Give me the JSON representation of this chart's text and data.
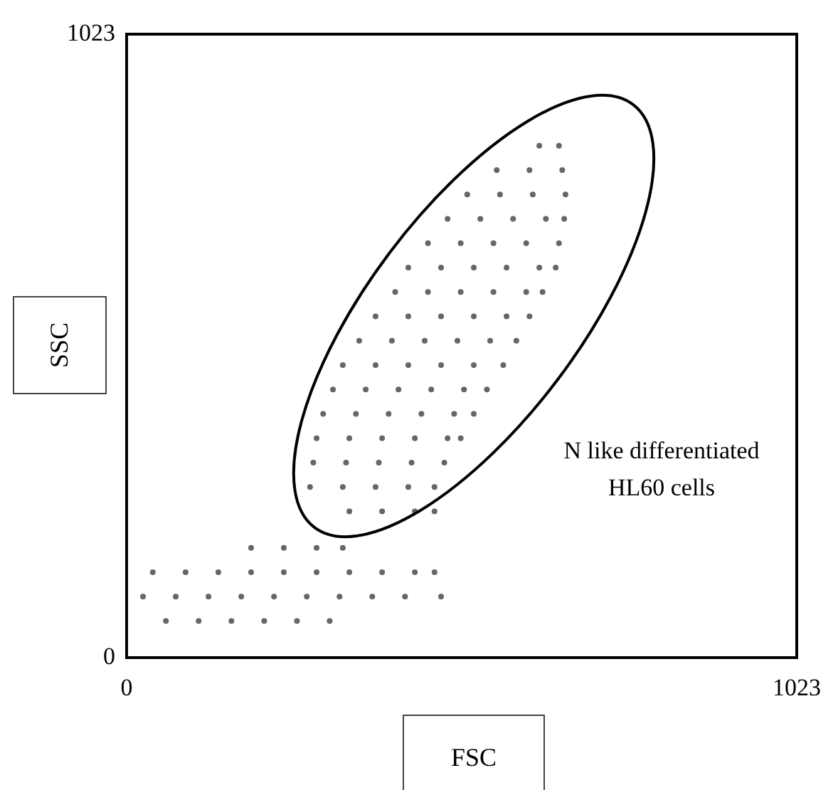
{
  "chart_data": {
    "type": "scatter",
    "xlabel": "FSC",
    "ylabel": "SSC",
    "annotations": [
      "N like differentiated HL60 cells"
    ],
    "xlim": [
      0,
      1023
    ],
    "ylim": [
      0,
      1023
    ],
    "xticks": [
      0,
      1023
    ],
    "yticks": [
      0,
      1023
    ],
    "legend": false,
    "marker": "circle",
    "series": [
      {
        "color": "#666666",
        "x": [
          340,
          390,
          440,
          470,
          280,
          330,
          380,
          430,
          470,
          285,
          335,
          385,
          435,
          485,
          290,
          340,
          390,
          440,
          490,
          510,
          300,
          350,
          400,
          450,
          500,
          530,
          315,
          365,
          415,
          465,
          515,
          550,
          330,
          380,
          430,
          480,
          530,
          575,
          355,
          405,
          455,
          505,
          555,
          595,
          380,
          430,
          480,
          530,
          580,
          615,
          410,
          460,
          510,
          560,
          610,
          635,
          430,
          480,
          530,
          580,
          630,
          655,
          460,
          510,
          560,
          610,
          660,
          490,
          540,
          590,
          640,
          668,
          520,
          570,
          620,
          670,
          565,
          615,
          665,
          630,
          660
        ],
        "values": [
          240,
          240,
          240,
          240,
          280,
          280,
          280,
          280,
          280,
          320,
          320,
          320,
          320,
          320,
          360,
          360,
          360,
          360,
          360,
          360,
          400,
          400,
          400,
          400,
          400,
          400,
          440,
          440,
          440,
          440,
          440,
          440,
          480,
          480,
          480,
          480,
          480,
          480,
          520,
          520,
          520,
          520,
          520,
          520,
          560,
          560,
          560,
          560,
          560,
          560,
          600,
          600,
          600,
          600,
          600,
          600,
          640,
          640,
          640,
          640,
          640,
          640,
          680,
          680,
          680,
          680,
          680,
          720,
          720,
          720,
          720,
          720,
          760,
          760,
          760,
          760,
          800,
          800,
          800,
          840,
          840
        ]
      },
      {
        "color": "#666666",
        "x": [
          60,
          110,
          160,
          210,
          260,
          310,
          25,
          75,
          125,
          175,
          225,
          275,
          325,
          375,
          425,
          480,
          40,
          90,
          140,
          190,
          240,
          290,
          340,
          390,
          440,
          470,
          190,
          240,
          290,
          330
        ],
        "values": [
          60,
          60,
          60,
          60,
          60,
          60,
          100,
          100,
          100,
          100,
          100,
          100,
          100,
          100,
          100,
          100,
          140,
          140,
          140,
          140,
          140,
          140,
          140,
          140,
          140,
          140,
          180,
          180,
          180,
          180
        ]
      }
    ]
  }
}
